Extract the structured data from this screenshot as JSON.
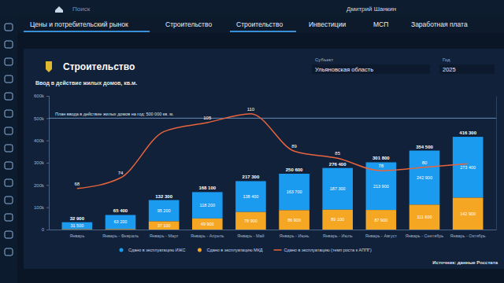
{
  "page": {
    "search": "Поиск",
    "user": "Дмитрий Шанкин",
    "tabs": [
      "Цены и потребительский рынок",
      "Строительство",
      "Строительство",
      "Инвестиции",
      "МСП",
      "Заработная плата"
    ],
    "section_title": "Строительство",
    "subject_label": "Субъект",
    "subject": "Ульяновская область",
    "year_label": "Год",
    "year": "2025",
    "source": "Источник: данные Росстата"
  },
  "chart_data": {
    "type": "bar",
    "title": "Ввод в действие жилых домов, кв.м.",
    "categories": [
      "Январь",
      "Январь - Февраль",
      "Январь - Март",
      "Январь - Апрель",
      "Январь - Май",
      "Январь - Июнь",
      "Январь - Июль",
      "Январь - Август",
      "Январь - Сентябрь",
      "Январь - Октябрь"
    ],
    "stacked": true,
    "data_labels": true,
    "tick_labels": "y",
    "grid": false,
    "legend": "bottom",
    "series": [
      {
        "name": "Сдано в эксплуатацию ИЖС",
        "color": "#1a9bf0",
        "values": [
          31500,
          63200,
          95200,
          118200,
          138400,
          163700,
          187300,
          213900,
          242900,
          273400
        ],
        "value_labels": [
          "31 500",
          "63 200",
          "95 200",
          "118 200",
          "138 400",
          "163 700",
          "187 300",
          "213 900",
          "242 900",
          "273 400"
        ]
      },
      {
        "name": "Сдано в эксплуатацию МКД",
        "color": "#f5a623",
        "values": [
          1400,
          2200,
          37100,
          49900,
          78900,
          86900,
          89100,
          87900,
          111600,
          142900
        ],
        "value_labels": [
          null,
          null,
          "37 100",
          "49 900",
          "78 900",
          "86 900",
          "89 100",
          "87 900",
          "111 600",
          "142 900"
        ]
      },
      {
        "name": "Сдано в эксплуатацию (темп роста к АППГ)",
        "type": "line",
        "axis": "y2",
        "color": "#e8643c",
        "values": [
          68,
          74,
          100,
          105,
          110,
          89,
          85,
          78,
          80,
          82
        ],
        "value_labels": [
          "68",
          "74",
          null,
          "105",
          "110",
          "89",
          "85",
          "78",
          "80",
          null
        ]
      }
    ],
    "total_labels": [
      "32 900",
      "65 400",
      "132 300",
      "168 100",
      "217 300",
      "250 600",
      "276 400",
      "301 800",
      "354 500",
      "416 300"
    ],
    "annotations": [
      {
        "text": "План ввода в действие жилых домов на год: 500 000 кв. м.",
        "value": 500000
      }
    ],
    "ylim": [
      0,
      600000
    ],
    "yticks": [
      0,
      {
        "value": 100000,
        "label": "100k"
      },
      {
        "value": 200000,
        "label": "200k"
      },
      {
        "value": 300000,
        "label": "300k"
      },
      {
        "value": 400000,
        "label": "400k"
      },
      {
        "value": 500000,
        "label": "500k"
      },
      {
        "value": 600000,
        "label": "600k"
      }
    ],
    "y2lim": [
      45,
      120
    ],
    "y2ticks": []
  }
}
